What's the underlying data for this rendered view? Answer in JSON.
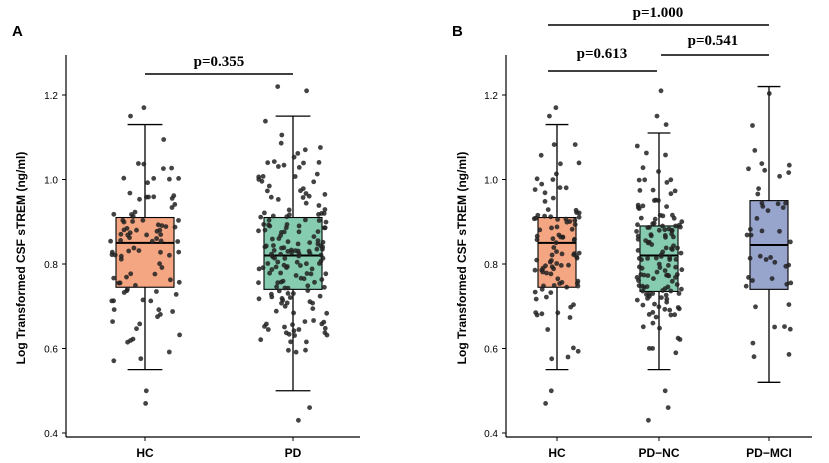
{
  "chart_data": [
    {
      "panel": "A",
      "type": "box",
      "ylabel": "Log Transformed CSF sTREM (ng/ml)",
      "xlabel": "",
      "ylim": [
        0.4,
        1.25
      ],
      "yticks": [
        "0.4",
        "0.6",
        "0.8",
        "1.0",
        "1.2"
      ],
      "grid": false,
      "categories": [
        "HC",
        "PD"
      ],
      "groups": [
        {
          "name": "HC",
          "color": "#F4A582",
          "min": 0.55,
          "q1": 0.745,
          "median": 0.85,
          "q3": 0.91,
          "max": 1.13,
          "outliers": [
            0.47,
            0.5,
            1.15,
            1.17
          ],
          "n_points": 95
        },
        {
          "name": "PD",
          "color": "#86CCB0",
          "min": 0.5,
          "q1": 0.74,
          "median": 0.82,
          "q3": 0.91,
          "max": 1.15,
          "outliers": [
            0.43,
            0.46,
            1.21,
            1.22
          ],
          "n_points": 175
        }
      ],
      "comparisons": [
        {
          "groups": [
            "HC",
            "PD"
          ],
          "label": "p=0.355"
        }
      ]
    },
    {
      "panel": "B",
      "type": "box",
      "ylabel": "Log Transformed CSF sTREM (ng/ml)",
      "xlabel": "",
      "ylim": [
        0.4,
        1.25
      ],
      "yticks": [
        "0.4",
        "0.6",
        "0.8",
        "1.0",
        "1.2"
      ],
      "grid": false,
      "categories": [
        "HC",
        "PD−NC",
        "PD−MCI"
      ],
      "groups": [
        {
          "name": "HC",
          "color": "#F4A582",
          "min": 0.55,
          "q1": 0.745,
          "median": 0.85,
          "q3": 0.91,
          "max": 1.13,
          "outliers": [
            0.47,
            0.5,
            1.15,
            1.17
          ],
          "n_points": 95
        },
        {
          "name": "PD−NC",
          "color": "#86CCB0",
          "min": 0.55,
          "q1": 0.735,
          "median": 0.82,
          "q3": 0.89,
          "max": 1.11,
          "outliers": [
            0.43,
            0.46,
            0.5,
            1.13,
            1.15,
            1.21
          ],
          "n_points": 135
        },
        {
          "name": "PD−MCI",
          "color": "#97A4CC",
          "min": 0.52,
          "q1": 0.74,
          "median": 0.845,
          "q3": 0.95,
          "max": 1.22,
          "outliers": [],
          "n_points": 45
        }
      ],
      "comparisons": [
        {
          "groups": [
            "HC",
            "PD−NC"
          ],
          "label": "p=0.613"
        },
        {
          "groups": [
            "PD−NC",
            "PD−MCI"
          ],
          "label": "p=0.541"
        },
        {
          "groups": [
            "HC",
            "PD−MCI"
          ],
          "label": "p=1.000"
        }
      ]
    }
  ]
}
